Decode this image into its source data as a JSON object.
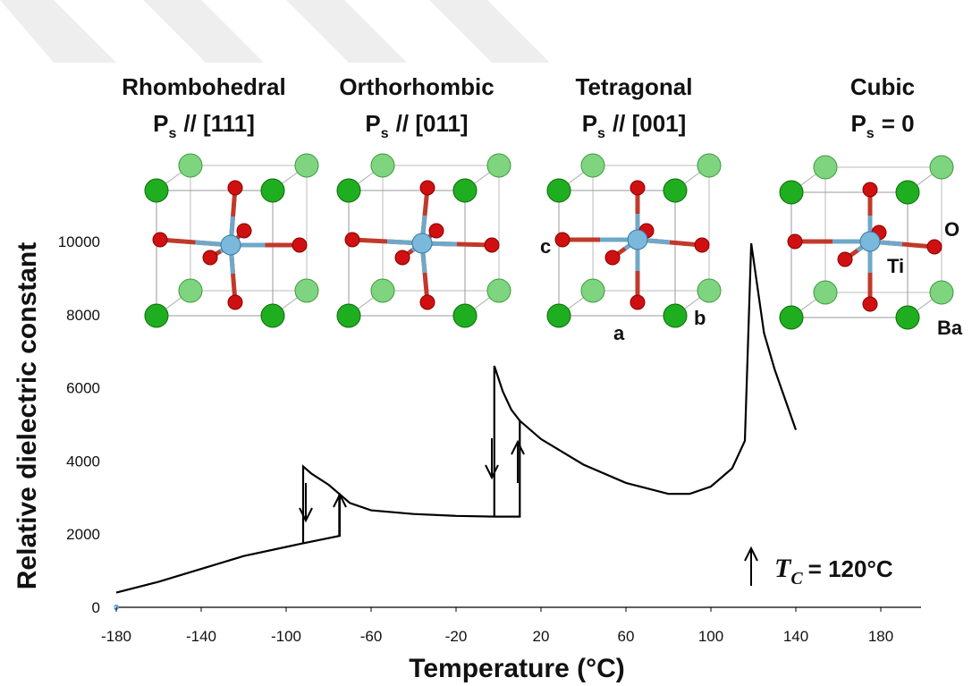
{
  "chart_data": {
    "type": "line",
    "x_label": "Temperature (°C)",
    "y_label": "Relative dielectric constant",
    "xlim": [
      -180,
      200
    ],
    "ylim": [
      0,
      10000
    ],
    "xticks": [
      -180,
      -140,
      -100,
      -60,
      -20,
      20,
      60,
      100,
      140,
      180
    ],
    "yticks": [
      0,
      2000,
      4000,
      6000,
      8000,
      10000
    ],
    "color": "#000000",
    "x": [
      -180,
      -160,
      -140,
      -120,
      -100,
      -92,
      -92,
      -88,
      -80,
      -75,
      -70,
      -60,
      -40,
      -20,
      -2,
      -2,
      2,
      6,
      10,
      20,
      40,
      60,
      80,
      90,
      100,
      110,
      116,
      119,
      125,
      130,
      140,
      null,
      -92,
      -75,
      -75,
      null,
      -2,
      10,
      10
    ],
    "values": [
      400,
      700,
      1050,
      1400,
      1650,
      1750,
      3850,
      3650,
      3350,
      3100,
      2850,
      2650,
      2550,
      2500,
      2480,
      6600,
      5900,
      5400,
      5100,
      4600,
      3900,
      3400,
      3100,
      3100,
      3300,
      3800,
      4550,
      9950,
      7500,
      6500,
      4850,
      null,
      1750,
      1950,
      3100,
      null,
      2480,
      2480,
      5100
    ],
    "phases": [
      {
        "name": "Rhombohedral",
        "polarization": "P",
        "subscript": "s",
        "direction": "// [111]"
      },
      {
        "name": "Orthorhombic",
        "polarization": "P",
        "subscript": "s",
        "direction": "// [011]"
      },
      {
        "name": "Tetragonal",
        "polarization": "P",
        "subscript": "s",
        "direction": "// [001]"
      },
      {
        "name": "Cubic",
        "polarization": "P",
        "subscript": "s",
        "direction": "= 0"
      }
    ],
    "lattice_labels": [
      "c",
      "a",
      "b"
    ],
    "atom_labels": [
      "O",
      "Ti",
      "Ba"
    ],
    "annotation": {
      "symbol": "T",
      "subscript": "C",
      "text": "= 120°C"
    }
  }
}
